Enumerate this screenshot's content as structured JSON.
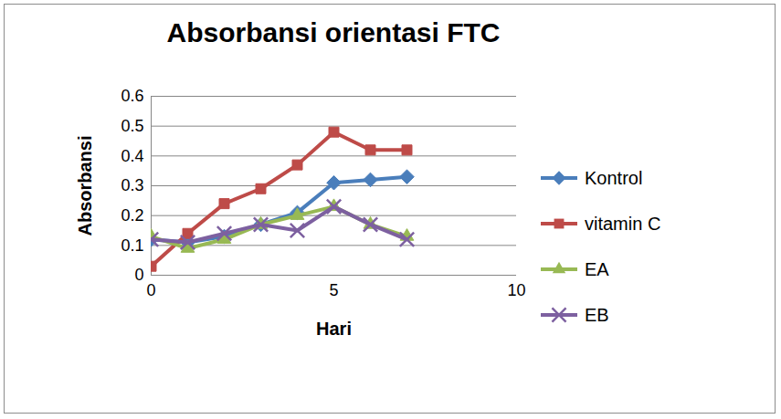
{
  "chart_data": {
    "type": "line",
    "title": "Absorbansi orientasi FTC",
    "x_label": "Hari",
    "y_label": "Absorbansi",
    "x": [
      0,
      1,
      2,
      3,
      4,
      5,
      6,
      7
    ],
    "series": [
      {
        "name": "Kontrol",
        "color": "#4a7ebb",
        "marker": "diamond",
        "values": [
          0.12,
          0.11,
          0.13,
          0.17,
          0.21,
          0.31,
          0.32,
          0.33
        ]
      },
      {
        "name": "vitamin C",
        "color": "#be4b48",
        "marker": "square",
        "values": [
          0.03,
          0.14,
          0.24,
          0.29,
          0.37,
          0.48,
          0.42,
          0.42
        ]
      },
      {
        "name": "EA",
        "color": "#98b954",
        "marker": "triangle",
        "values": [
          0.13,
          0.09,
          0.12,
          0.17,
          0.2,
          0.23,
          0.17,
          0.13
        ]
      },
      {
        "name": "EB",
        "color": "#7d60a0",
        "marker": "x",
        "values": [
          0.12,
          0.11,
          0.14,
          0.17,
          0.15,
          0.23,
          0.17,
          0.12
        ]
      }
    ],
    "xlim": [
      0,
      10
    ],
    "xticks": [
      0,
      5,
      10
    ],
    "ylim": [
      0,
      0.6
    ],
    "yticks": [
      0,
      0.1,
      0.2,
      0.3,
      0.4,
      0.5,
      0.6
    ],
    "grid": true,
    "legend": "right"
  }
}
